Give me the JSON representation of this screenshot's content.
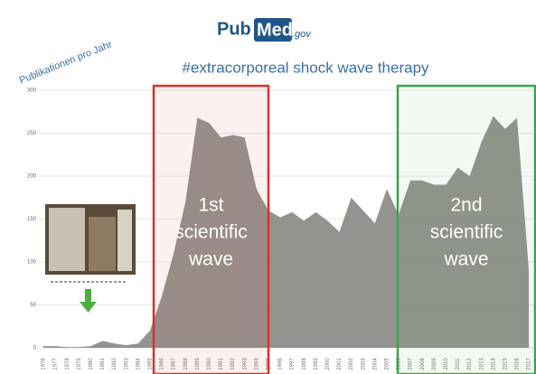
{
  "chart_data": {
    "type": "area",
    "logo": {
      "pub": "Pub",
      "med": "Med",
      "suffix": ".gov"
    },
    "y_label": "Publikationen pro Jahr",
    "title": "#extracorporeal shock wave therapy",
    "categories": [
      "1976",
      "1977",
      "1978",
      "1979",
      "1980",
      "1981",
      "1982",
      "1983",
      "1984",
      "1985",
      "1986",
      "1987",
      "1988",
      "1989",
      "1990",
      "1991",
      "1992",
      "1993",
      "1994",
      "1995",
      "1996",
      "1997",
      "1998",
      "1999",
      "2000",
      "2001",
      "2002",
      "2003",
      "2004",
      "2005",
      "2006",
      "2007",
      "2008",
      "2009",
      "2010",
      "2011",
      "2012",
      "2013",
      "2014",
      "2015",
      "2016",
      "2017"
    ],
    "values": [
      2,
      2,
      1,
      1,
      2,
      8,
      5,
      3,
      5,
      20,
      60,
      110,
      170,
      268,
      262,
      245,
      248,
      245,
      185,
      160,
      152,
      158,
      148,
      158,
      148,
      135,
      175,
      160,
      145,
      185,
      155,
      195,
      195,
      190,
      190,
      210,
      200,
      240,
      270,
      255,
      268,
      90
    ],
    "color": "#8a8784",
    "ylim": [
      0,
      300
    ],
    "yticks": [
      0,
      50,
      100,
      150,
      200,
      250,
      300
    ],
    "grid": true,
    "annotations": [
      {
        "lines": [
          "1st",
          "scientific",
          "wave"
        ],
        "color": "#d9322b"
      },
      {
        "lines": [
          "2nd",
          "scientific",
          "wave"
        ],
        "color": "#3aa54a"
      }
    ]
  }
}
